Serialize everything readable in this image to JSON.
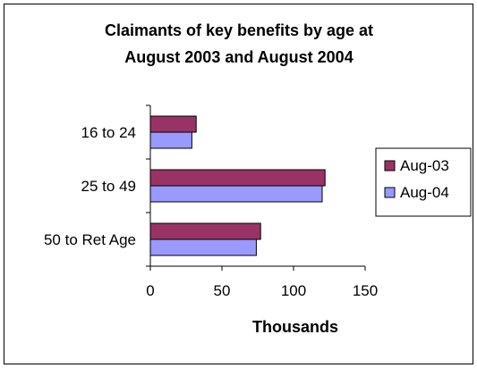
{
  "chart_data": {
    "type": "bar",
    "orientation": "horizontal",
    "title_lines": [
      "Claimants of key benefits by age at",
      "August 2003 and August 2004"
    ],
    "categories": [
      "16 to 24",
      "25 to 49",
      "50 to Ret Age"
    ],
    "series": [
      {
        "name": "Aug-03",
        "color": "#993366",
        "values": [
          32,
          122,
          77
        ]
      },
      {
        "name": "Aug-04",
        "color": "#9999FF",
        "values": [
          29,
          120,
          74
        ]
      }
    ],
    "xlabel": "Thousands",
    "ylabel": "",
    "xlim": [
      0,
      150
    ],
    "xticks": [
      "0",
      "50",
      "100",
      "150"
    ],
    "grid": false,
    "legend_position": "right"
  }
}
